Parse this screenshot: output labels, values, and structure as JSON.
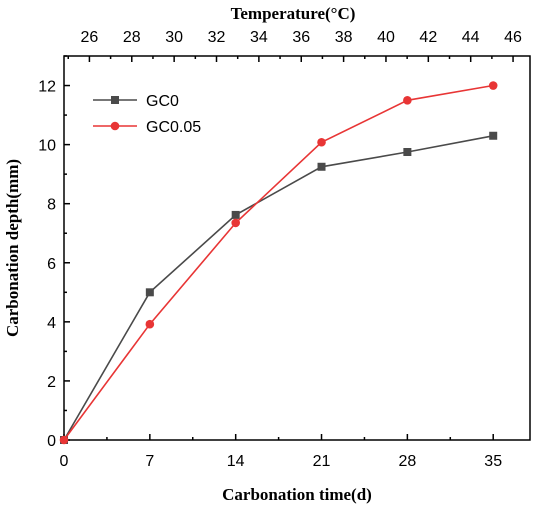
{
  "chart_data": {
    "type": "line",
    "title": "",
    "xlabel": "Carbonation time(d)",
    "ylabel": "Carbonation depth(mm)",
    "x2label": "Temperature(°C)",
    "xlim": [
      0,
      38
    ],
    "ylim": [
      0,
      13
    ],
    "x2lim": [
      24.8,
      46.8
    ],
    "xticks": [
      0,
      7,
      14,
      21,
      28,
      35
    ],
    "yticks": [
      0,
      2,
      4,
      6,
      8,
      10,
      12
    ],
    "x2ticks": [
      26,
      28,
      30,
      32,
      34,
      36,
      38,
      40,
      42,
      44,
      46
    ],
    "x": [
      0,
      7,
      14,
      21,
      28,
      35
    ],
    "series": [
      {
        "name": "GC0",
        "marker": "square",
        "color": "#4a4a4a",
        "values": [
          0,
          5.0,
          7.62,
          9.25,
          9.75,
          10.3
        ]
      },
      {
        "name": "GC0.05",
        "marker": "circle",
        "color": "#e83535",
        "values": [
          0,
          3.92,
          7.35,
          10.08,
          11.5,
          12.0
        ]
      }
    ],
    "legend_position": "top-left",
    "grid": false
  }
}
